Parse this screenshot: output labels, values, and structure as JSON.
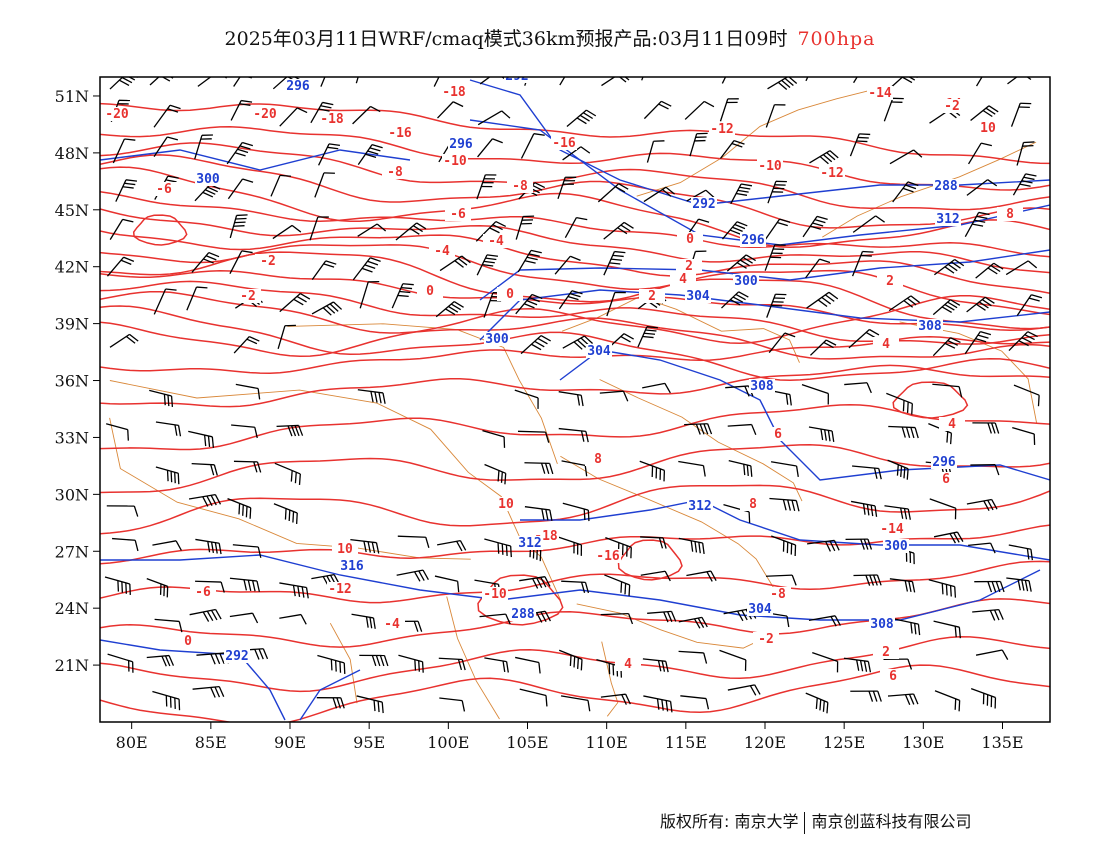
{
  "title": {
    "text": "2025年03月11日WRF/cmaq模式36km预报产品:03月11日09时",
    "level": "700hpa"
  },
  "map": {
    "lon_range": [
      78,
      138
    ],
    "lat_range": [
      18,
      52
    ],
    "lon_ticks": [
      "80E",
      "85E",
      "90E",
      "95E",
      "100E",
      "105E",
      "110E",
      "115E",
      "120E",
      "125E",
      "130E",
      "135E"
    ],
    "lat_ticks": [
      "51N",
      "48N",
      "45N",
      "42N",
      "39N",
      "36N",
      "33N",
      "30N",
      "27N",
      "24N",
      "21N"
    ],
    "colors": {
      "temperature": "#e8322f",
      "height": "#1f3fd1",
      "border": "#d9883a",
      "wind": "#000000"
    },
    "temperature_labels": [
      "-20",
      "-20",
      "-18",
      "-18",
      "-16",
      "-16",
      "-14",
      "-14",
      "-12",
      "-12",
      "-10",
      "-10",
      "-8",
      "-8",
      "-6",
      "-6",
      "-4",
      "-4",
      "-2",
      "-2",
      "0",
      "0",
      "2",
      "2",
      "4",
      "4",
      "6",
      "6",
      "8",
      "8",
      "10",
      "10",
      "-18",
      "-16",
      "-14",
      "-12",
      "-10",
      "-8",
      "-6",
      "-4",
      "-2",
      "0",
      "2",
      "4",
      "6",
      "8",
      "10",
      "-2",
      "0",
      "2",
      "4",
      "6",
      "8"
    ],
    "height_labels": [
      "296",
      "292",
      "296",
      "300",
      "300",
      "288",
      "292",
      "296",
      "300",
      "304",
      "304",
      "308",
      "308",
      "312",
      "312",
      "316",
      "288",
      "292",
      "296",
      "300",
      "304",
      "308",
      "312"
    ]
  },
  "footer": {
    "left": "版权所有: 南京大学",
    "right": "南京创蓝科技有限公司"
  }
}
